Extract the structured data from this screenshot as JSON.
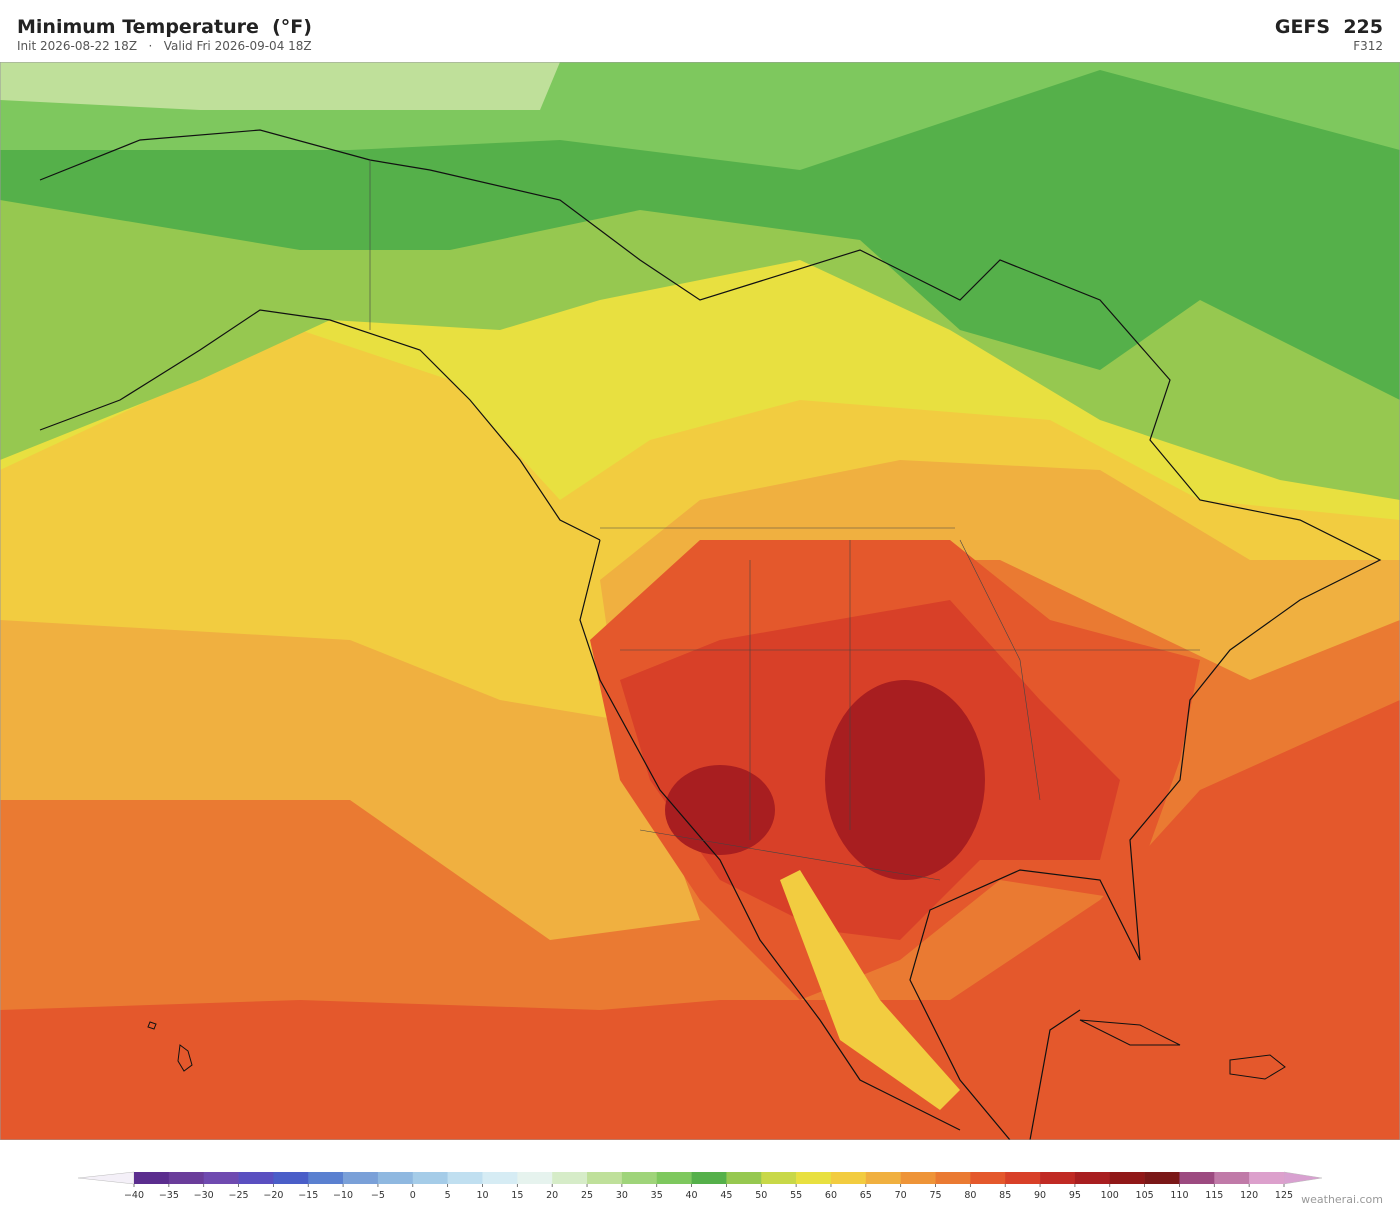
{
  "header": {
    "title": "Minimum Temperature  (°F)",
    "subtitle": "Init 2026-08-22 18Z   ·   Valid Fri 2026-09-04 18Z",
    "model": "GEFS  225",
    "forecast_hour": "F312"
  },
  "colorbar": {
    "ticks": [
      {
        "value": -40,
        "label": "−40"
      },
      {
        "value": -35,
        "label": "−35"
      },
      {
        "value": -30,
        "label": "−30"
      },
      {
        "value": -25,
        "label": "−25"
      },
      {
        "value": -20,
        "label": "−20"
      },
      {
        "value": -15,
        "label": "−15"
      },
      {
        "value": -10,
        "label": "−10"
      },
      {
        "value": -5,
        "label": "−5"
      },
      0,
      5,
      10,
      15,
      20,
      25,
      30,
      35,
      40,
      45,
      50,
      55,
      60,
      65,
      70,
      75,
      80,
      85,
      90,
      95,
      100,
      105,
      110,
      115,
      120,
      125
    ],
    "colors": [
      "#5b2d8e",
      "#6a3d9a",
      "#6f4ab0",
      "#5a4fc0",
      "#4a5ec8",
      "#5a80d0",
      "#7aa0d8",
      "#8fb8e0",
      "#a5cce8",
      "#c0dff0",
      "#d6ecf4",
      "#e6f3ee",
      "#d6ecc8",
      "#bfe09a",
      "#9fd47a",
      "#7ec85e",
      "#55b04a",
      "#96c850",
      "#c8d848",
      "#e8e040",
      "#f2cc40",
      "#f0b040",
      "#ee9438",
      "#ea7a32",
      "#e4582c",
      "#d84028",
      "#c02a24",
      "#a81e20",
      "#901818",
      "#7a1818",
      "#9c4a80",
      "#c07aa8",
      "#dca0cc"
    ],
    "extend_colors": [
      "#f4f0f8",
      "#d8a0d0"
    ]
  },
  "credit": "weatherai.com"
}
